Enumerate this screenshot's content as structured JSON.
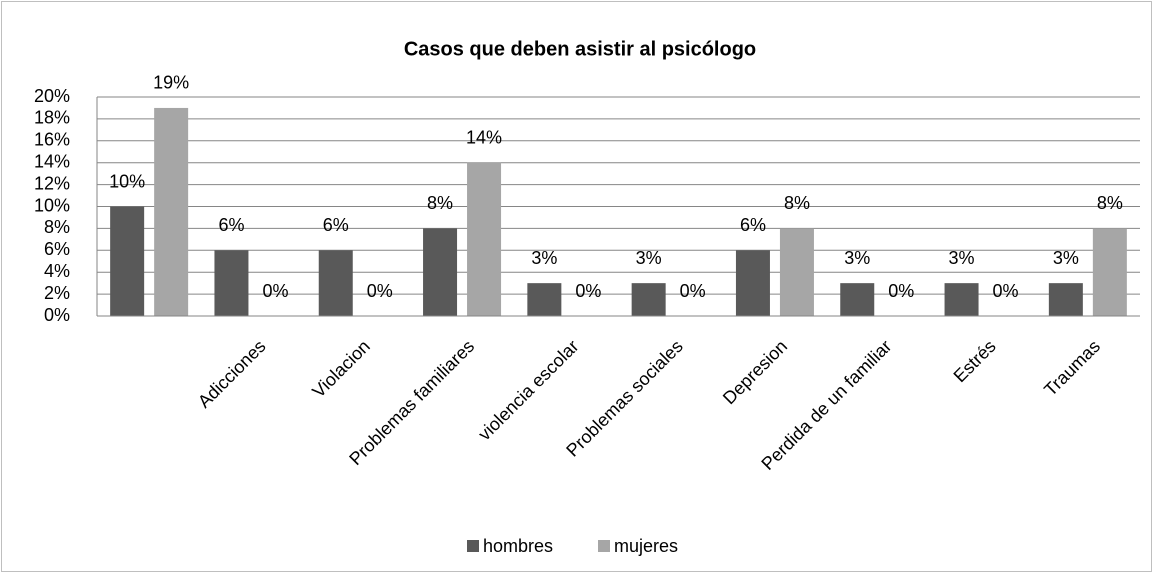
{
  "chart_data": {
    "type": "bar",
    "title": "Casos  que deben asistir al psicólogo",
    "categories": [
      null,
      "Adicciones",
      "Violacion",
      "Problemas familiares",
      "violencia escolar",
      "Problemas sociales",
      "Depresion",
      "Perdida de un familiar",
      "Estrés",
      "Traumas"
    ],
    "series": [
      {
        "name": "hombres",
        "color": "#595959",
        "values": [
          10,
          6,
          6,
          8,
          3,
          3,
          6,
          3,
          3,
          3
        ],
        "value_labels": [
          "10%",
          "6%",
          "6%",
          "8%",
          "3%",
          "3%",
          "6%",
          "3%",
          "3%",
          "3%"
        ]
      },
      {
        "name": "mujeres",
        "color": "#a6a6a6",
        "values": [
          19,
          0,
          0,
          14,
          0,
          0,
          8,
          0,
          0,
          8
        ],
        "value_labels": [
          "19%",
          "0%",
          "0%",
          "14%",
          "0%",
          "0%",
          "8%",
          "0%",
          "0%",
          "8%"
        ]
      }
    ],
    "ylim": [
      0,
      20
    ],
    "yticks": [
      {
        "value": 0,
        "label": "0%"
      },
      {
        "value": 2,
        "label": "2%"
      },
      {
        "value": 4,
        "label": "4%"
      },
      {
        "value": 6,
        "label": "6%"
      },
      {
        "value": 8,
        "label": "8%"
      },
      {
        "value": 10,
        "label": "10%"
      },
      {
        "value": 12,
        "label": "12%"
      },
      {
        "value": 14,
        "label": "14%"
      },
      {
        "value": 16,
        "label": "16%"
      },
      {
        "value": 18,
        "label": "18%"
      },
      {
        "value": 20,
        "label": "20%"
      }
    ],
    "grid": true,
    "legend": "bottom"
  }
}
